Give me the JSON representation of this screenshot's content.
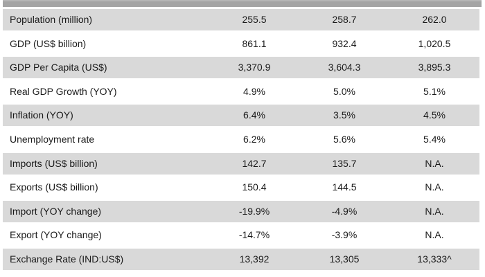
{
  "colors": {
    "header_strip": "#a4a4a4",
    "row_shaded": "#d9d9d9",
    "row_plain": "#ffffff",
    "text": "#1a1a1a"
  },
  "chart_data": {
    "type": "table",
    "title": "",
    "columns_visible": 3,
    "rows": [
      {
        "label": "Population (million)",
        "values": [
          "255.5",
          "258.7",
          "262.0"
        ]
      },
      {
        "label": "GDP (US$ billion)",
        "values": [
          "861.1",
          "932.4",
          "1,020.5"
        ]
      },
      {
        "label": "GDP Per Capita (US$)",
        "values": [
          "3,370.9",
          "3,604.3",
          "3,895.3"
        ]
      },
      {
        "label": "Real GDP Growth (YOY)",
        "values": [
          "4.9%",
          "5.0%",
          "5.1%"
        ]
      },
      {
        "label": "Inflation (YOY)",
        "values": [
          "6.4%",
          "3.5%",
          "4.5%"
        ]
      },
      {
        "label": "Unemployment rate",
        "values": [
          "6.2%",
          "5.6%",
          "5.4%"
        ]
      },
      {
        "label": "Imports (US$ billion)",
        "values": [
          "142.7",
          "135.7",
          "N.A."
        ]
      },
      {
        "label": "Exports (US$ billion)",
        "values": [
          "150.4",
          "144.5",
          "N.A."
        ]
      },
      {
        "label": "Import (YOY change)",
        "values": [
          "-19.9%",
          "-4.9%",
          "N.A."
        ]
      },
      {
        "label": "Export (YOY change)",
        "values": [
          "-14.7%",
          "-3.9%",
          "N.A."
        ]
      },
      {
        "label": "Exchange Rate (IND:US$)",
        "values": [
          "13,392",
          "13,305",
          "13,333^"
        ]
      }
    ]
  }
}
